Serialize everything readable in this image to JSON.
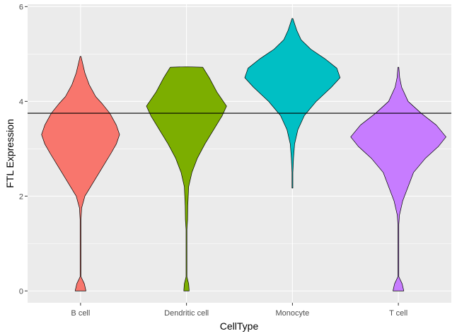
{
  "chart_data": {
    "type": "violin",
    "xlabel": "CellType",
    "ylabel": "FTL Expression",
    "ylim": [
      -0.25,
      6.05
    ],
    "yticks": [
      0,
      2,
      4,
      6
    ],
    "ytick_labels": [
      "0",
      "2",
      "4",
      "6"
    ],
    "categories": [
      "B cell",
      "Dendritic cell",
      "Monocyte",
      "T cell"
    ],
    "reference_line": 3.75,
    "grid": true,
    "colors": {
      "panel": "#ebebeb",
      "grid": "#ffffff",
      "reference_line": "#000000",
      "outline": "#000000"
    },
    "series": [
      {
        "category": "B cell",
        "color": "#F8766D",
        "max_halfwidth": 0.36,
        "profile": [
          [
            0,
            0.05
          ],
          [
            0.15,
            0.035
          ],
          [
            0.3,
            0.002
          ],
          [
            0.5,
            0.002
          ],
          [
            1.0,
            0.002
          ],
          [
            1.5,
            0.002
          ],
          [
            1.75,
            0.01
          ],
          [
            2.0,
            0.04
          ],
          [
            2.3,
            0.12
          ],
          [
            2.6,
            0.2
          ],
          [
            2.9,
            0.28
          ],
          [
            3.1,
            0.33
          ],
          [
            3.3,
            0.36
          ],
          [
            3.5,
            0.33
          ],
          [
            3.75,
            0.27
          ],
          [
            3.95,
            0.2
          ],
          [
            4.1,
            0.14
          ],
          [
            4.35,
            0.08
          ],
          [
            4.6,
            0.04
          ],
          [
            4.95,
            0.0
          ]
        ]
      },
      {
        "category": "Dendritic cell",
        "color": "#7CAE00",
        "max_halfwidth": 0.37,
        "profile": [
          [
            0,
            0.025
          ],
          [
            0.15,
            0.02
          ],
          [
            0.3,
            0.003
          ],
          [
            1.3,
            0.003
          ],
          [
            1.5,
            0.01
          ],
          [
            1.8,
            0.012
          ],
          [
            2.2,
            0.02
          ],
          [
            2.5,
            0.05
          ],
          [
            2.8,
            0.1
          ],
          [
            3.1,
            0.17
          ],
          [
            3.4,
            0.25
          ],
          [
            3.7,
            0.33
          ],
          [
            3.9,
            0.37
          ],
          [
            4.2,
            0.28
          ],
          [
            4.5,
            0.21
          ],
          [
            4.72,
            0.15
          ],
          [
            4.73,
            0.0
          ]
        ]
      },
      {
        "category": "Monocyte",
        "color": "#00BFC4",
        "max_halfwidth": 0.44,
        "profile": [
          [
            2.17,
            0.0
          ],
          [
            2.5,
            0.003
          ],
          [
            2.8,
            0.01
          ],
          [
            3.1,
            0.02
          ],
          [
            3.4,
            0.05
          ],
          [
            3.7,
            0.11
          ],
          [
            4.0,
            0.22
          ],
          [
            4.3,
            0.36
          ],
          [
            4.5,
            0.44
          ],
          [
            4.7,
            0.41
          ],
          [
            4.9,
            0.3
          ],
          [
            5.1,
            0.17
          ],
          [
            5.3,
            0.08
          ],
          [
            5.5,
            0.04
          ],
          [
            5.75,
            0.0
          ]
        ]
      },
      {
        "category": "T cell",
        "color": "#C77CFF",
        "max_halfwidth": 0.44,
        "profile": [
          [
            0,
            0.05
          ],
          [
            0.15,
            0.035
          ],
          [
            0.3,
            0.002
          ],
          [
            1.4,
            0.002
          ],
          [
            1.6,
            0.01
          ],
          [
            1.9,
            0.04
          ],
          [
            2.2,
            0.09
          ],
          [
            2.5,
            0.14
          ],
          [
            2.8,
            0.25
          ],
          [
            3.05,
            0.37
          ],
          [
            3.25,
            0.44
          ],
          [
            3.5,
            0.35
          ],
          [
            3.75,
            0.21
          ],
          [
            4.0,
            0.09
          ],
          [
            4.3,
            0.03
          ],
          [
            4.5,
            0.012
          ],
          [
            4.72,
            0.0
          ]
        ]
      }
    ]
  }
}
